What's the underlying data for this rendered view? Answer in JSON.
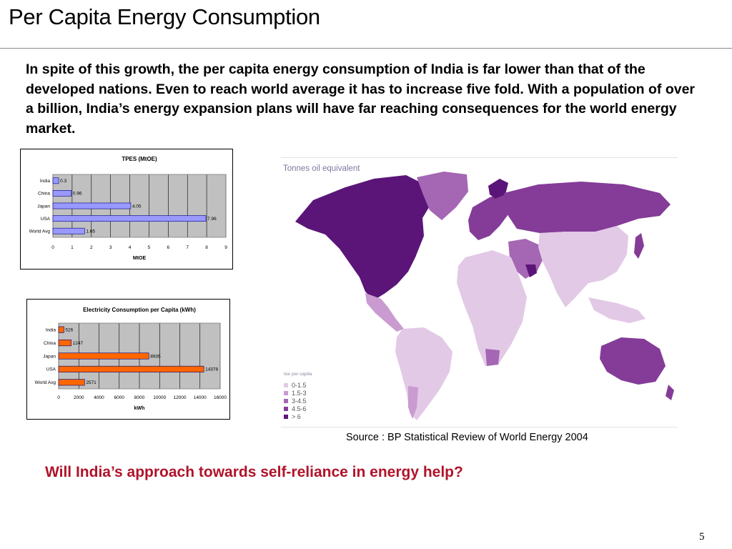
{
  "slide": {
    "title": "Per Capita Energy Consumption",
    "intro": "In spite of this growth, the per capita energy consumption of India is far lower than that of the developed nations. Even to reach world average it has to increase five fold. With a population of over a billion, India’s energy expansion plans will have far reaching consequences for the world energy market.",
    "source": "Source : BP Statistical Review of World Energy 2004",
    "question": "Will India’s approach towards self-reliance in energy help?",
    "page_number": "5"
  },
  "map": {
    "label": "Tonnes oil equivalent",
    "legend_title": "toe per capita",
    "legend": [
      {
        "label": "0-1.5",
        "color": "#e2c9e6"
      },
      {
        "label": "1.5-3",
        "color": "#c99bd0"
      },
      {
        "label": "3-4.5",
        "color": "#a566b4"
      },
      {
        "label": "4.5-6",
        "color": "#843c98"
      },
      {
        "label": "> 6",
        "color": "#5b1578"
      }
    ]
  },
  "chart_data": [
    {
      "type": "bar",
      "orientation": "horizontal",
      "title": "TPES (MtOE)",
      "xlabel": "MtOE",
      "categories": [
        "India",
        "China",
        "Japan",
        "USA",
        "World Avg"
      ],
      "values": [
        0.3,
        0.96,
        4.05,
        7.96,
        1.65
      ],
      "value_labels": [
        "0.3",
        "0.96",
        "4.05",
        "7.96",
        "1.65"
      ],
      "xlim": [
        0,
        9
      ],
      "ticks": [
        "0",
        "1",
        "2",
        "3",
        "4",
        "5",
        "6",
        "7",
        "8",
        "9"
      ],
      "bar_color": "#9999ff",
      "grid": true
    },
    {
      "type": "bar",
      "orientation": "horizontal",
      "title": "Electricity Consumption per Capita (kWh)",
      "xlabel": "kWh",
      "categories": [
        "India",
        "China",
        "Japan",
        "USA",
        "World Avg"
      ],
      "values": [
        526,
        1247,
        8935,
        14378,
        2571
      ],
      "value_labels": [
        "526",
        "1247",
        "8935",
        "14378",
        "2571"
      ],
      "xlim": [
        0,
        16000
      ],
      "ticks": [
        "0",
        "2000",
        "4000",
        "6000",
        "8000",
        "10000",
        "12000",
        "14000",
        "16000"
      ],
      "bar_color": "#ff6600",
      "grid": true
    }
  ]
}
